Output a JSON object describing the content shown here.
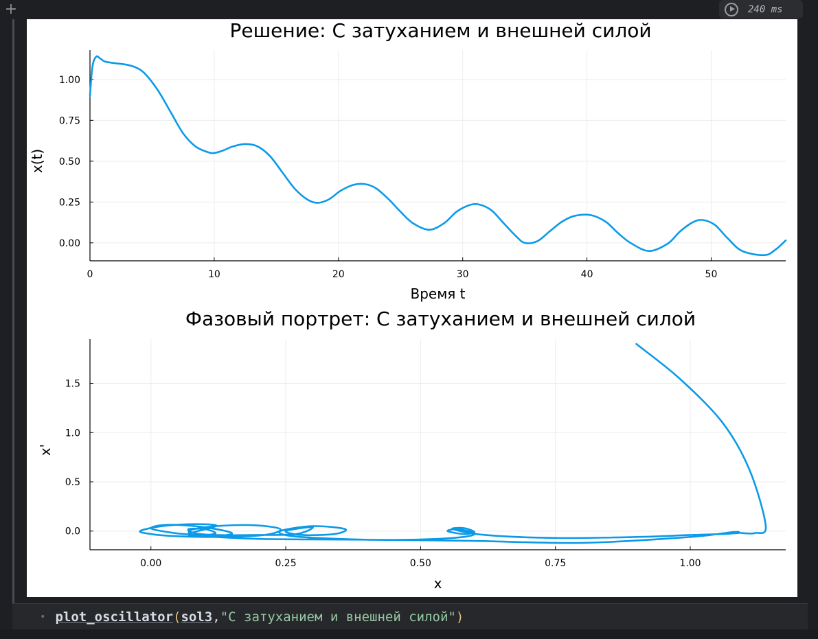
{
  "toolbar": {
    "add_icon": "plus-icon",
    "run_time": "240 ms",
    "run_icon": "play-circle-icon"
  },
  "code": {
    "function": "plot_oscillator",
    "arg1": "sol3",
    "arg2": "\"С затуханием и внешней силой\""
  },
  "colors": {
    "series": "#0b9ae8",
    "grid": "#ececec",
    "axis": "#000000"
  },
  "chart_data": [
    {
      "type": "line",
      "title": "Решение: С затуханием и внешней силой",
      "xlabel": "Время t",
      "ylabel": "x(t)",
      "xlim": [
        0,
        56
      ],
      "ylim": [
        -0.11,
        1.18
      ],
      "xticks": [
        0,
        10,
        20,
        30,
        40,
        50
      ],
      "xtick_labels": [
        "0",
        "10",
        "20",
        "30",
        "40",
        "50"
      ],
      "yticks": [
        0,
        0.25,
        0.5,
        0.75,
        1.0
      ],
      "ytick_labels": [
        "0.00",
        "0.25",
        "0.50",
        "0.75",
        "1.00"
      ],
      "grid": true,
      "legend": "none",
      "series": [
        {
          "x": [
            0,
            0.2,
            0.5,
            0.8,
            1.2,
            2,
            3,
            3.8,
            4.5,
            5.5,
            6.5,
            7.5,
            8.5,
            9.5,
            10,
            10.7,
            11.5,
            12.5,
            13.5,
            14.5,
            15.5,
            16.5,
            17.5,
            18.3,
            19.2,
            20.2,
            21.2,
            22.1,
            23,
            24,
            25,
            26,
            27.3,
            28.5,
            29.5,
            30.5,
            31.3,
            32.3,
            33.3,
            34.3,
            35,
            36,
            37,
            38,
            39,
            40.3,
            41.5,
            42.5,
            43.5,
            45,
            46.5,
            47.5,
            48.5,
            49.3,
            50.3,
            51.3,
            52.5,
            54.3,
            55.2,
            56
          ],
          "y": [
            0.9,
            1.08,
            1.14,
            1.13,
            1.11,
            1.1,
            1.09,
            1.07,
            1.03,
            0.93,
            0.8,
            0.67,
            0.59,
            0.555,
            0.55,
            0.565,
            0.59,
            0.605,
            0.59,
            0.53,
            0.43,
            0.33,
            0.265,
            0.245,
            0.265,
            0.32,
            0.355,
            0.36,
            0.335,
            0.27,
            0.19,
            0.12,
            0.08,
            0.12,
            0.19,
            0.23,
            0.235,
            0.2,
            0.12,
            0.04,
            0.0,
            0.01,
            0.07,
            0.13,
            0.165,
            0.17,
            0.13,
            0.06,
            0.0,
            -0.05,
            -0.005,
            0.07,
            0.125,
            0.14,
            0.11,
            0.03,
            -0.05,
            -0.075,
            -0.04,
            0.015
          ]
        }
      ]
    },
    {
      "type": "line",
      "title": "Фазовый портрет: С затуханием и внешней силой",
      "xlabel": "x",
      "ylabel": "x'",
      "xlim": [
        -0.113,
        1.177
      ],
      "ylim": [
        -0.19,
        1.95
      ],
      "xticks": [
        0,
        0.25,
        0.5,
        0.75,
        1.0
      ],
      "xtick_labels": [
        "0.00",
        "0.25",
        "0.50",
        "0.75",
        "1.00"
      ],
      "yticks": [
        0,
        0.5,
        1.0,
        1.5
      ],
      "ytick_labels": [
        "0.0",
        "0.5",
        "1.0",
        "1.5"
      ],
      "grid": true,
      "legend": "none",
      "series": [
        {
          "x": [
            0.9,
            0.98,
            1.06,
            1.11,
            1.14,
            1.12,
            1.095,
            1.08,
            1.0,
            0.8,
            0.6,
            0.45,
            0.3,
            0.2,
            0.12,
            0.08,
            0.07,
            0.08,
            0.12,
            0.19,
            0.24,
            0.21,
            0.12,
            0.04,
            0.0,
            -0.02,
            0.02,
            0.08,
            0.12,
            0.11,
            0.08,
            0.07,
            0.1,
            0.13,
            0.15,
            0.11,
            0.06,
            0.02,
            0.0,
            0.02,
            0.06,
            0.1,
            0.12,
            0.1,
            0.07,
            0.08,
            0.12,
            0.2,
            0.27,
            0.3,
            0.25,
            0.28,
            0.34,
            0.36,
            0.3,
            0.24,
            0.26,
            0.35,
            0.45,
            0.56,
            0.6,
            0.57,
            0.55,
            0.58,
            0.6,
            0.58,
            0.56,
            0.62,
            0.75,
            0.9,
            1.0,
            1.06,
            1.09
          ],
          "y": [
            1.9,
            1.55,
            1.1,
            0.62,
            0.05,
            -0.02,
            -0.02,
            -0.01,
            -0.06,
            -0.12,
            -0.1,
            -0.09,
            -0.085,
            -0.08,
            -0.06,
            -0.04,
            -0.01,
            0.02,
            0.05,
            0.06,
            0.02,
            -0.04,
            -0.06,
            -0.05,
            -0.03,
            0.0,
            0.05,
            0.07,
            0.06,
            0.03,
            -0.01,
            -0.04,
            -0.06,
            -0.05,
            -0.02,
            0.03,
            0.06,
            0.06,
            0.03,
            0.0,
            -0.03,
            -0.04,
            -0.02,
            0.02,
            0.02,
            -0.02,
            -0.04,
            -0.04,
            -0.03,
            0.04,
            0.0,
            -0.04,
            -0.03,
            0.02,
            0.05,
            0.0,
            -0.05,
            -0.08,
            -0.09,
            -0.07,
            -0.03,
            0.02,
            0.0,
            -0.03,
            -0.01,
            0.03,
            0.02,
            -0.04,
            -0.07,
            -0.06,
            -0.04,
            -0.03,
            -0.02
          ]
        }
      ]
    }
  ]
}
